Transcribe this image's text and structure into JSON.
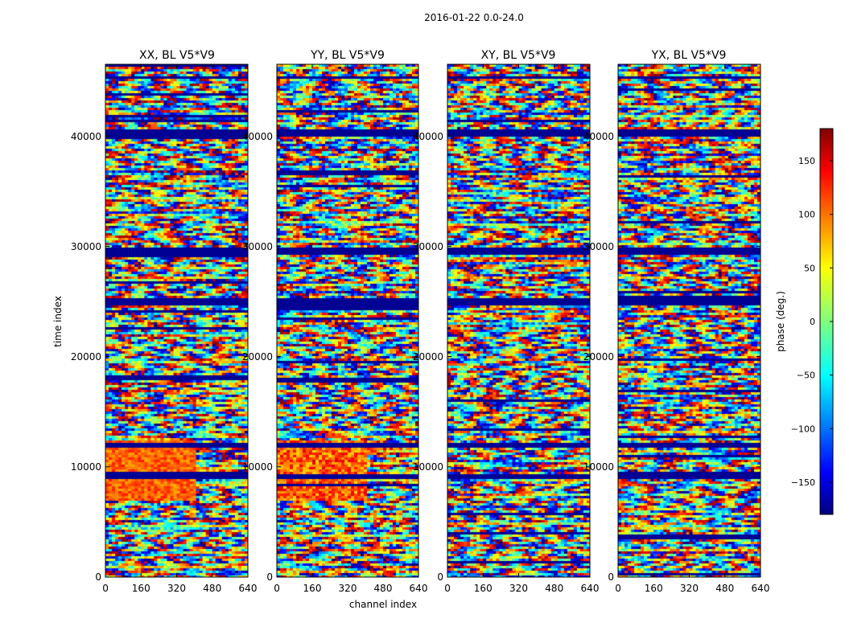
{
  "suptitle": "2016-01-22 0.0-24.0",
  "xlabel": "channel index",
  "ylabel": "time index",
  "panels": [
    {
      "title": "XX, BL V5*V9"
    },
    {
      "title": "YY, BL V5*V9"
    },
    {
      "title": "XY, BL V5*V9"
    },
    {
      "title": "YX, BL V5*V9"
    }
  ],
  "x_ticks": [
    "0",
    "160",
    "320",
    "480",
    "640"
  ],
  "y_ticks": [
    "0",
    "10000",
    "20000",
    "30000",
    "40000"
  ],
  "colorbar": {
    "label": "phase (deg.)",
    "ticks": [
      "150",
      "100",
      "50",
      "0",
      "−50",
      "−100",
      "−150"
    ],
    "colormap": "jet"
  },
  "chart_data": {
    "type": "heatmap",
    "title": "2016-01-22 0.0-24.0",
    "xlabel": "channel index",
    "ylabel": "time index",
    "panels": [
      "XX, BL V5*V9",
      "YY, BL V5*V9",
      "XY, BL V5*V9",
      "YX, BL V5*V9"
    ],
    "xlim": [
      0,
      640
    ],
    "ylim": [
      0,
      46500
    ],
    "x_tick_values": [
      0,
      160,
      320,
      480,
      640
    ],
    "y_tick_values": [
      0,
      10000,
      20000,
      30000,
      40000
    ],
    "colorbar": {
      "label": "phase (deg.)",
      "range": [
        -180,
        180
      ],
      "tick_values": [
        150,
        100,
        50,
        0,
        -50,
        -100,
        -150
      ]
    },
    "colormap_stops": [
      "#00007f",
      "#0000ff",
      "#007fff",
      "#00ffff",
      "#7fff7f",
      "#ffff00",
      "#ff7f00",
      "#ff0000",
      "#7f0000"
    ],
    "flagged_rows_time_ranges": [
      [
        40000,
        40600
      ],
      [
        45200,
        45600
      ],
      [
        24800,
        25400
      ],
      [
        29400,
        29900
      ],
      [
        9100,
        9400
      ],
      [
        11800,
        12200
      ]
    ],
    "high_phase_region": {
      "panels": [
        "YY, BL V5*V9",
        "XX, BL V5*V9"
      ],
      "time_range": [
        7000,
        12500
      ],
      "channel_range": [
        0,
        400
      ],
      "approx_phase_deg": 130
    }
  }
}
